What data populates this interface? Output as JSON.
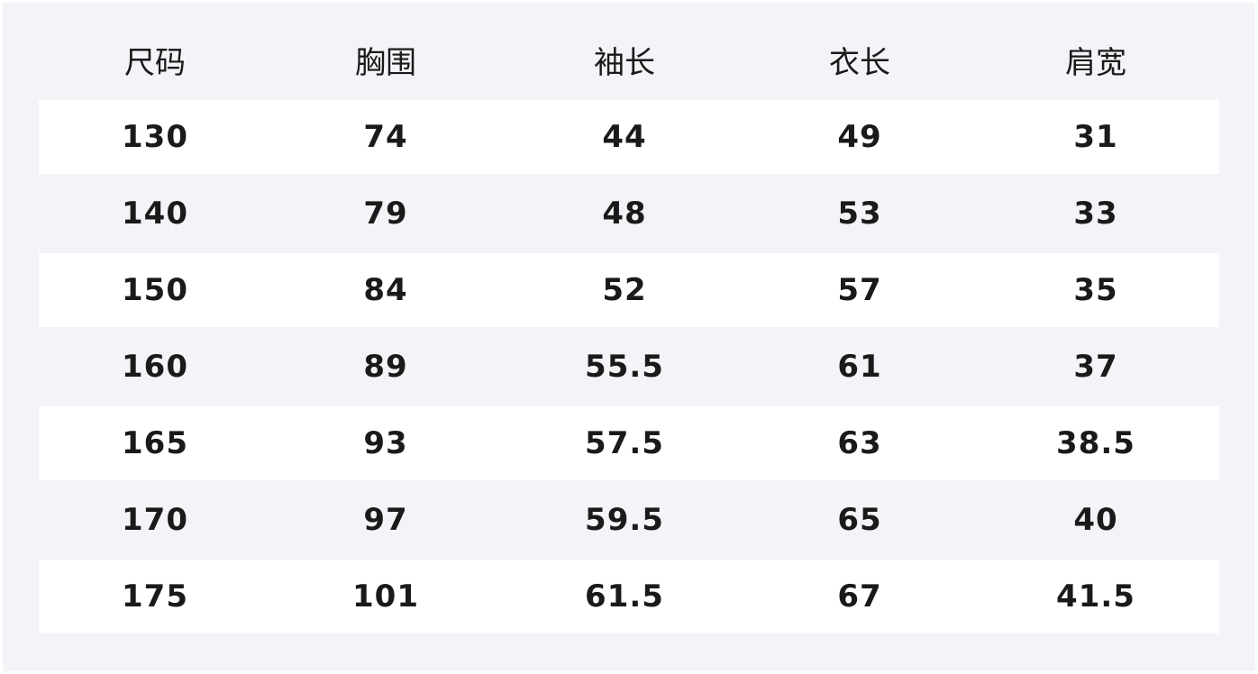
{
  "table": {
    "headers": [
      "尺码",
      "胸围",
      "袖长",
      "衣长",
      "肩宽"
    ],
    "rows": [
      [
        "130",
        "74",
        "44",
        "49",
        "31"
      ],
      [
        "140",
        "79",
        "48",
        "53",
        "33"
      ],
      [
        "150",
        "84",
        "52",
        "57",
        "35"
      ],
      [
        "160",
        "89",
        "55.5",
        "61",
        "37"
      ],
      [
        "165",
        "93",
        "57.5",
        "63",
        "38.5"
      ],
      [
        "170",
        "97",
        "59.5",
        "65",
        "40"
      ],
      [
        "175",
        "101",
        "61.5",
        "67",
        "41.5"
      ]
    ]
  },
  "colors": {
    "background": "#f3f3f8",
    "stripe": "#ffffff",
    "text": "#1a1a1a"
  }
}
